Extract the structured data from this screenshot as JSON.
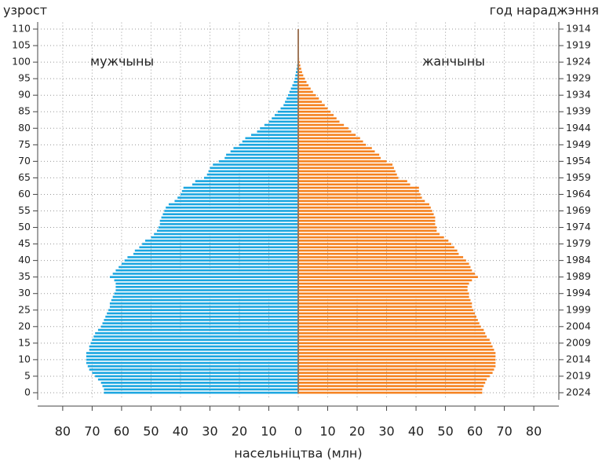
{
  "chart_data": {
    "type": "pyramid",
    "ylabel": "узрост",
    "y2label": "год нараджэння",
    "xlabel": "насельніцтва (млн)",
    "y": [
      0,
      1,
      2,
      3,
      4,
      5,
      6,
      7,
      8,
      9,
      10,
      11,
      12,
      13,
      14,
      15,
      16,
      17,
      18,
      19,
      20,
      21,
      22,
      23,
      24,
      25,
      26,
      27,
      28,
      29,
      30,
      31,
      32,
      33,
      34,
      35,
      36,
      37,
      38,
      39,
      40,
      41,
      42,
      43,
      44,
      45,
      46,
      47,
      48,
      49,
      50,
      51,
      52,
      53,
      54,
      55,
      56,
      57,
      58,
      59,
      60,
      61,
      62,
      63,
      64,
      65,
      66,
      67,
      68,
      69,
      70,
      71,
      72,
      73,
      74,
      75,
      76,
      77,
      78,
      79,
      80,
      81,
      82,
      83,
      84,
      85,
      86,
      87,
      88,
      89,
      90,
      91,
      92,
      93,
      94,
      95,
      96,
      97,
      98,
      99,
      100,
      101,
      102,
      103,
      104,
      105,
      106,
      107,
      108,
      109,
      110
    ],
    "series": [
      {
        "name": "мужчыны",
        "color": "#1ba6e0",
        "side": "left",
        "values": [
          66,
          66,
          66.5,
          67,
          68,
          69,
          70,
          71,
          71.5,
          72,
          72,
          72,
          72,
          71,
          71,
          70.5,
          70,
          69.5,
          69,
          68,
          67,
          66.5,
          66,
          65.5,
          65,
          64.5,
          64,
          64,
          63.5,
          63,
          62.5,
          62,
          62,
          62,
          62.5,
          64,
          63,
          62,
          61,
          60,
          59,
          58,
          56,
          55.5,
          54,
          53,
          52,
          50,
          49,
          48,
          47.5,
          47,
          47,
          46.5,
          46,
          45.5,
          45,
          44,
          42,
          41,
          40,
          39.5,
          39,
          36,
          35,
          32,
          31,
          30.5,
          30,
          29,
          27,
          25,
          24.5,
          23,
          22,
          20,
          19,
          18,
          16,
          14,
          13,
          11.5,
          10,
          9,
          8,
          7,
          6,
          5,
          4.5,
          4,
          3.5,
          3,
          2.5,
          2,
          1.5,
          1.2,
          1,
          0.8,
          0.6,
          0.4,
          0.3,
          0.2,
          0.15,
          0.1,
          0.05,
          0,
          0,
          0,
          0,
          0,
          0
        ]
      },
      {
        "name": "жанчыны",
        "color": "#f58220",
        "side": "right",
        "values": [
          62.5,
          62.5,
          63,
          63.5,
          64,
          65,
          66,
          66.5,
          67,
          67,
          67,
          67,
          67,
          66.5,
          66,
          65.5,
          65,
          64,
          63.5,
          63,
          62,
          61.5,
          61,
          60.5,
          60,
          59.5,
          59,
          59,
          58.5,
          58,
          58,
          57.5,
          57.5,
          58,
          59,
          61,
          60,
          59,
          58.5,
          58,
          57,
          56,
          54.5,
          54,
          53,
          52,
          51,
          49.5,
          48,
          47,
          47,
          46.5,
          46.5,
          46.5,
          46,
          45.5,
          45,
          44.5,
          43,
          42,
          41.5,
          41,
          41,
          38,
          37,
          34,
          33.5,
          33,
          32.5,
          32,
          30,
          28,
          27.5,
          26,
          25,
          23,
          22,
          21,
          19.5,
          18,
          17,
          15.5,
          14,
          13,
          12,
          11,
          10,
          9,
          8,
          7,
          6,
          5,
          4.2,
          3.5,
          2.8,
          2.2,
          1.7,
          1.3,
          1,
          0.7,
          0.5,
          0.3,
          0.2,
          0.15,
          0.1,
          0.05,
          0,
          0,
          0,
          0,
          0
        ]
      }
    ],
    "xlim": [
      -88.5,
      88.5
    ],
    "xticks": [
      {
        "value": -80,
        "label": "80"
      },
      {
        "value": -70,
        "label": "70"
      },
      {
        "value": -60,
        "label": "60"
      },
      {
        "value": -50,
        "label": "50"
      },
      {
        "value": -40,
        "label": "40"
      },
      {
        "value": -30,
        "label": "30"
      },
      {
        "value": -20,
        "label": "20"
      },
      {
        "value": -10,
        "label": "10"
      },
      0,
      10,
      20,
      30,
      40,
      50,
      60,
      70,
      80
    ],
    "ylim": [
      -2,
      112
    ],
    "yticks": [
      0,
      5,
      10,
      15,
      20,
      25,
      30,
      35,
      40,
      45,
      50,
      55,
      60,
      65,
      70,
      75,
      80,
      85,
      90,
      95,
      100,
      105,
      110
    ],
    "y2lim": [
      2026,
      1912
    ],
    "y2ticks": [
      2024,
      2019,
      2014,
      2009,
      2004,
      1999,
      1994,
      1989,
      1984,
      1979,
      1974,
      1969,
      1964,
      1959,
      1954,
      1949,
      1944,
      1939,
      1934,
      1929,
      1924,
      1919,
      1914
    ],
    "grid": true
  }
}
